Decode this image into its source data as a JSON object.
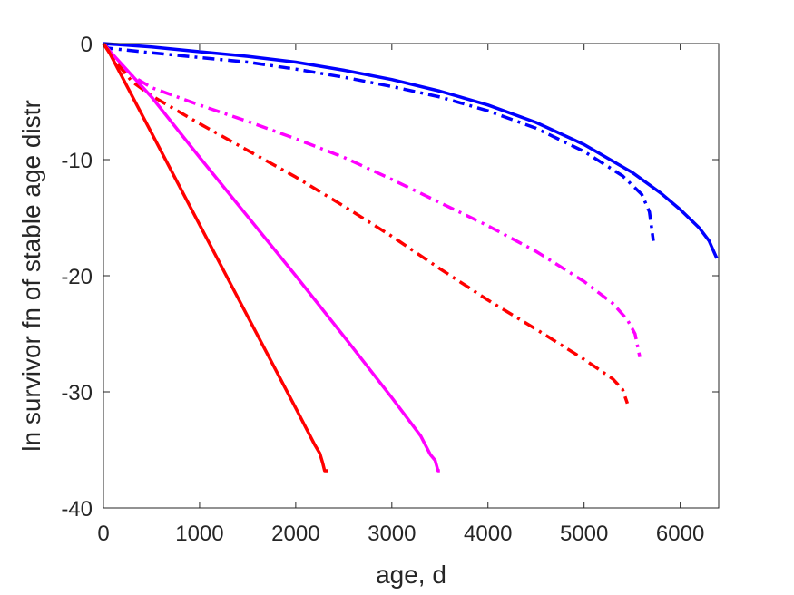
{
  "chart_data": {
    "type": "line",
    "xlabel": "age, d",
    "ylabel": "ln survivor fn of stable age distr",
    "xlim": [
      0,
      6400
    ],
    "ylim": [
      -40,
      0
    ],
    "xticks": [
      0,
      1000,
      2000,
      3000,
      4000,
      5000,
      6000
    ],
    "xtick_labels": [
      "0",
      "1000",
      "2000",
      "3000",
      "4000",
      "5000",
      "6000"
    ],
    "yticks": [
      0,
      -10,
      -20,
      -30,
      -40
    ],
    "ytick_labels": [
      "0",
      "-10",
      "-20",
      "-30",
      "-40"
    ],
    "grid": false,
    "box": true,
    "series": [
      {
        "color": "#0000ff",
        "style": "solid",
        "x": [
          0,
          500,
          1000,
          1500,
          2000,
          2500,
          3000,
          3500,
          4000,
          4500,
          5000,
          5500,
          5800,
          6000,
          6200,
          6300,
          6380
        ],
        "y": [
          0,
          -0.3,
          -0.7,
          -1.1,
          -1.6,
          -2.3,
          -3.1,
          -4.1,
          -5.3,
          -6.8,
          -8.7,
          -11.1,
          -12.9,
          -14.3,
          -15.9,
          -17.0,
          -18.5
        ]
      },
      {
        "color": "#0000ff",
        "style": "dashdot",
        "x": [
          0,
          50,
          500,
          1000,
          1500,
          2000,
          2500,
          3000,
          3500,
          4000,
          4500,
          5000,
          5400,
          5600,
          5680,
          5720
        ],
        "y": [
          0,
          -0.4,
          -0.8,
          -1.2,
          -1.6,
          -2.2,
          -2.9,
          -3.7,
          -4.6,
          -5.8,
          -7.3,
          -9.3,
          -11.4,
          -13.0,
          -14.5,
          -17.0
        ]
      },
      {
        "color": "#ff00ff",
        "style": "dashdot",
        "x": [
          0,
          100,
          200,
          500,
          1000,
          1500,
          2000,
          2500,
          3000,
          3500,
          4000,
          4500,
          5000,
          5300,
          5450,
          5530,
          5580
        ],
        "y": [
          0,
          -1.0,
          -2.3,
          -3.8,
          -5.3,
          -6.7,
          -8.2,
          -9.8,
          -11.7,
          -13.7,
          -15.7,
          -17.9,
          -20.5,
          -22.4,
          -23.8,
          -25.0,
          -27.0
        ]
      },
      {
        "color": "#ff0000",
        "style": "dashdot",
        "x": [
          0,
          100,
          300,
          500,
          1000,
          1500,
          2000,
          2500,
          3000,
          3500,
          4000,
          4500,
          5000,
          5300,
          5400,
          5450
        ],
        "y": [
          0,
          -1.3,
          -3.3,
          -4.5,
          -6.9,
          -9.2,
          -11.5,
          -14.0,
          -16.6,
          -19.4,
          -22.1,
          -24.6,
          -27.2,
          -28.9,
          -29.8,
          -31.0
        ]
      },
      {
        "color": "#ff00ff",
        "style": "solid",
        "x": [
          0,
          60,
          500,
          1000,
          1500,
          2000,
          2500,
          3000,
          3300,
          3400,
          3450,
          3480,
          3500
        ],
        "y": [
          0,
          -0.6,
          -4.6,
          -9.8,
          -14.9,
          -20.0,
          -25.2,
          -30.5,
          -33.8,
          -35.4,
          -35.9,
          -36.8,
          -36.8
        ]
      },
      {
        "color": "#ff0000",
        "style": "solid",
        "x": [
          0,
          50,
          500,
          1000,
          1500,
          2000,
          2200,
          2250,
          2280,
          2300,
          2340
        ],
        "y": [
          0,
          -0.6,
          -7.7,
          -15.6,
          -23.5,
          -31.4,
          -34.6,
          -35.3,
          -36.1,
          -36.8,
          -36.8
        ]
      }
    ]
  }
}
